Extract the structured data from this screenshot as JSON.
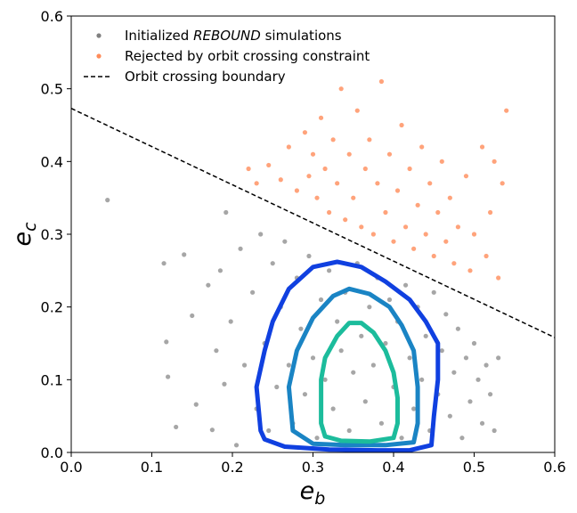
{
  "chart_data": {
    "type": "scatter",
    "xlabel_main": "e",
    "xlabel_sub": "b",
    "ylabel_main": "e",
    "ylabel_sub": "c",
    "xlim": [
      0.0,
      0.6
    ],
    "ylim": [
      0.0,
      0.6
    ],
    "xticks": [
      "0.0",
      "0.1",
      "0.2",
      "0.3",
      "0.4",
      "0.5",
      "0.6"
    ],
    "yticks": [
      "0.0",
      "0.1",
      "0.2",
      "0.3",
      "0.4",
      "0.5",
      "0.6"
    ],
    "grid": false,
    "legend_position": "top-left",
    "legend": [
      {
        "label_pre": "Initialized ",
        "label_em": "REBOUND",
        "label_post": " simulations",
        "marker": "dot",
        "color": "#808080"
      },
      {
        "label_pre": "Rejected by orbit crossing constraint",
        "label_em": "",
        "label_post": "",
        "marker": "dot",
        "color": "#ff8c5a"
      },
      {
        "label_pre": "Orbit crossing boundary",
        "label_em": "",
        "label_post": "",
        "marker": "dashed-line",
        "color": "#000000"
      }
    ],
    "boundary_line": {
      "x": [
        0.0,
        0.6
      ],
      "y": [
        0.473,
        0.158
      ],
      "style": "dashed",
      "color": "#000000"
    },
    "accepted_points": {
      "color": "#808080",
      "samples": [
        [
          0.045,
          0.347
        ],
        [
          0.115,
          0.26
        ],
        [
          0.118,
          0.152
        ],
        [
          0.12,
          0.104
        ],
        [
          0.13,
          0.035
        ],
        [
          0.14,
          0.272
        ],
        [
          0.15,
          0.188
        ],
        [
          0.155,
          0.066
        ],
        [
          0.17,
          0.23
        ],
        [
          0.175,
          0.031
        ],
        [
          0.18,
          0.14
        ],
        [
          0.185,
          0.25
        ],
        [
          0.19,
          0.094
        ],
        [
          0.192,
          0.33
        ],
        [
          0.198,
          0.18
        ],
        [
          0.205,
          0.01
        ],
        [
          0.21,
          0.28
        ],
        [
          0.215,
          0.12
        ],
        [
          0.225,
          0.22
        ],
        [
          0.23,
          0.06
        ],
        [
          0.235,
          0.3
        ],
        [
          0.24,
          0.15
        ],
        [
          0.245,
          0.03
        ],
        [
          0.25,
          0.26
        ],
        [
          0.255,
          0.09
        ],
        [
          0.26,
          0.2
        ],
        [
          0.265,
          0.29
        ],
        [
          0.27,
          0.12
        ],
        [
          0.275,
          0.04
        ],
        [
          0.28,
          0.24
        ],
        [
          0.285,
          0.17
        ],
        [
          0.29,
          0.08
        ],
        [
          0.295,
          0.27
        ],
        [
          0.3,
          0.13
        ],
        [
          0.305,
          0.02
        ],
        [
          0.31,
          0.21
        ],
        [
          0.315,
          0.1
        ],
        [
          0.32,
          0.25
        ],
        [
          0.325,
          0.06
        ],
        [
          0.33,
          0.18
        ],
        [
          0.335,
          0.14
        ],
        [
          0.34,
          0.22
        ],
        [
          0.345,
          0.03
        ],
        [
          0.35,
          0.11
        ],
        [
          0.355,
          0.26
        ],
        [
          0.36,
          0.16
        ],
        [
          0.365,
          0.07
        ],
        [
          0.37,
          0.2
        ],
        [
          0.375,
          0.12
        ],
        [
          0.38,
          0.24
        ],
        [
          0.385,
          0.04
        ],
        [
          0.39,
          0.15
        ],
        [
          0.395,
          0.21
        ],
        [
          0.4,
          0.09
        ],
        [
          0.405,
          0.18
        ],
        [
          0.41,
          0.02
        ],
        [
          0.415,
          0.23
        ],
        [
          0.42,
          0.13
        ],
        [
          0.425,
          0.06
        ],
        [
          0.43,
          0.2
        ],
        [
          0.435,
          0.1
        ],
        [
          0.44,
          0.16
        ],
        [
          0.445,
          0.03
        ],
        [
          0.45,
          0.22
        ],
        [
          0.455,
          0.08
        ],
        [
          0.46,
          0.14
        ],
        [
          0.465,
          0.19
        ],
        [
          0.47,
          0.05
        ],
        [
          0.475,
          0.11
        ],
        [
          0.48,
          0.17
        ],
        [
          0.485,
          0.02
        ],
        [
          0.49,
          0.13
        ],
        [
          0.495,
          0.07
        ],
        [
          0.5,
          0.15
        ],
        [
          0.505,
          0.1
        ],
        [
          0.51,
          0.04
        ],
        [
          0.515,
          0.12
        ],
        [
          0.52,
          0.08
        ],
        [
          0.525,
          0.03
        ],
        [
          0.53,
          0.13
        ]
      ]
    },
    "rejected_points": {
      "color": "#ff8c5a",
      "samples": [
        [
          0.22,
          0.39
        ],
        [
          0.23,
          0.37
        ],
        [
          0.245,
          0.395
        ],
        [
          0.26,
          0.375
        ],
        [
          0.27,
          0.42
        ],
        [
          0.28,
          0.36
        ],
        [
          0.29,
          0.44
        ],
        [
          0.295,
          0.38
        ],
        [
          0.3,
          0.41
        ],
        [
          0.305,
          0.35
        ],
        [
          0.31,
          0.46
        ],
        [
          0.315,
          0.39
        ],
        [
          0.32,
          0.33
        ],
        [
          0.325,
          0.43
        ],
        [
          0.33,
          0.37
        ],
        [
          0.335,
          0.5
        ],
        [
          0.34,
          0.32
        ],
        [
          0.345,
          0.41
        ],
        [
          0.35,
          0.35
        ],
        [
          0.355,
          0.47
        ],
        [
          0.36,
          0.31
        ],
        [
          0.365,
          0.39
        ],
        [
          0.37,
          0.43
        ],
        [
          0.375,
          0.3
        ],
        [
          0.38,
          0.37
        ],
        [
          0.385,
          0.51
        ],
        [
          0.39,
          0.33
        ],
        [
          0.395,
          0.41
        ],
        [
          0.4,
          0.29
        ],
        [
          0.405,
          0.36
        ],
        [
          0.41,
          0.45
        ],
        [
          0.415,
          0.31
        ],
        [
          0.42,
          0.39
        ],
        [
          0.425,
          0.28
        ],
        [
          0.43,
          0.34
        ],
        [
          0.435,
          0.42
        ],
        [
          0.44,
          0.3
        ],
        [
          0.445,
          0.37
        ],
        [
          0.45,
          0.27
        ],
        [
          0.455,
          0.33
        ],
        [
          0.46,
          0.4
        ],
        [
          0.465,
          0.29
        ],
        [
          0.47,
          0.35
        ],
        [
          0.475,
          0.26
        ],
        [
          0.48,
          0.31
        ],
        [
          0.49,
          0.38
        ],
        [
          0.495,
          0.25
        ],
        [
          0.5,
          0.3
        ],
        [
          0.51,
          0.42
        ],
        [
          0.515,
          0.27
        ],
        [
          0.52,
          0.33
        ],
        [
          0.525,
          0.4
        ],
        [
          0.53,
          0.24
        ],
        [
          0.535,
          0.37
        ],
        [
          0.54,
          0.47
        ]
      ]
    },
    "density_contours": [
      {
        "color": "#1040e0",
        "points": [
          [
            0.235,
            0.03
          ],
          [
            0.23,
            0.09
          ],
          [
            0.24,
            0.14
          ],
          [
            0.25,
            0.18
          ],
          [
            0.27,
            0.225
          ],
          [
            0.3,
            0.255
          ],
          [
            0.33,
            0.262
          ],
          [
            0.36,
            0.255
          ],
          [
            0.39,
            0.235
          ],
          [
            0.42,
            0.21
          ],
          [
            0.44,
            0.18
          ],
          [
            0.455,
            0.15
          ],
          [
            0.455,
            0.1
          ],
          [
            0.45,
            0.05
          ],
          [
            0.447,
            0.01
          ],
          [
            0.42,
            0.003
          ],
          [
            0.38,
            0.003
          ],
          [
            0.32,
            0.004
          ],
          [
            0.265,
            0.008
          ],
          [
            0.24,
            0.018
          ]
        ]
      },
      {
        "color": "#1a84c4",
        "points": [
          [
            0.275,
            0.03
          ],
          [
            0.27,
            0.09
          ],
          [
            0.28,
            0.14
          ],
          [
            0.3,
            0.185
          ],
          [
            0.325,
            0.215
          ],
          [
            0.345,
            0.225
          ],
          [
            0.37,
            0.218
          ],
          [
            0.395,
            0.2
          ],
          [
            0.41,
            0.175
          ],
          [
            0.425,
            0.14
          ],
          [
            0.43,
            0.09
          ],
          [
            0.43,
            0.04
          ],
          [
            0.425,
            0.014
          ],
          [
            0.39,
            0.01
          ],
          [
            0.34,
            0.01
          ],
          [
            0.3,
            0.012
          ]
        ]
      },
      {
        "color": "#1cbc9c",
        "points": [
          [
            0.31,
            0.04
          ],
          [
            0.31,
            0.1
          ],
          [
            0.315,
            0.13
          ],
          [
            0.33,
            0.16
          ],
          [
            0.345,
            0.178
          ],
          [
            0.36,
            0.178
          ],
          [
            0.375,
            0.165
          ],
          [
            0.39,
            0.14
          ],
          [
            0.4,
            0.11
          ],
          [
            0.405,
            0.075
          ],
          [
            0.405,
            0.04
          ],
          [
            0.4,
            0.02
          ],
          [
            0.37,
            0.015
          ],
          [
            0.335,
            0.016
          ],
          [
            0.315,
            0.022
          ]
        ]
      }
    ]
  }
}
